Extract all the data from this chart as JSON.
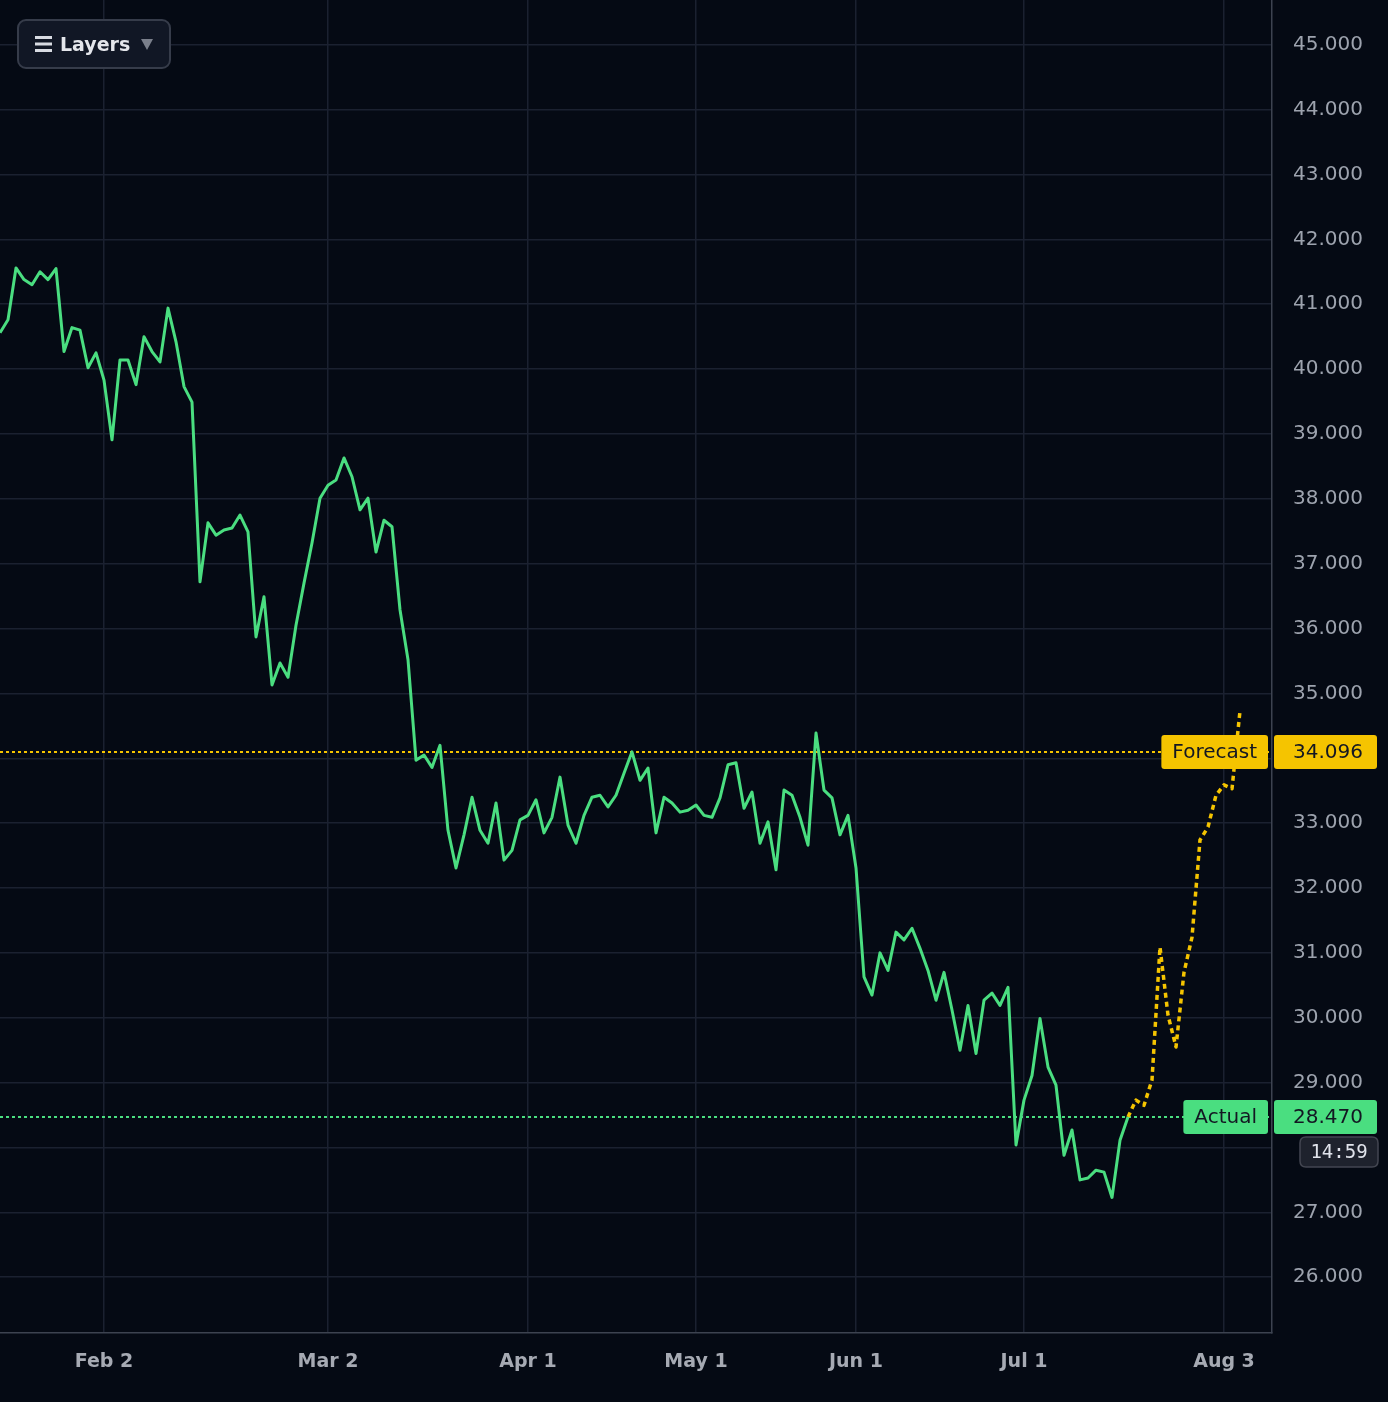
{
  "chart_data": {
    "type": "line",
    "annotations": [
      "Layers",
      "34.096",
      "28.470",
      "14:59"
    ],
    "categories": [
      null,
      null,
      null,
      null,
      null,
      null,
      null,
      null,
      null,
      null,
      null,
      null,
      null,
      "Feb 2",
      null,
      null,
      null,
      null,
      null,
      null,
      null,
      null,
      null,
      null,
      null,
      null,
      null,
      null,
      null,
      null,
      null,
      null,
      null,
      null,
      null,
      null,
      null,
      null,
      null,
      null,
      null,
      "Mar 2",
      null,
      null,
      null,
      null,
      null,
      null,
      null,
      null,
      null,
      null,
      null,
      null,
      null,
      null,
      null,
      null,
      null,
      null,
      null,
      null,
      null,
      null,
      null,
      null,
      "Apr 1",
      null,
      null,
      null,
      null,
      null,
      null,
      null,
      null,
      null,
      null,
      null,
      null,
      null,
      null,
      null,
      null,
      null,
      null,
      null,
      null,
      "May 1",
      null,
      null,
      null,
      null,
      null,
      null,
      null,
      null,
      null,
      null,
      null,
      null,
      null,
      null,
      null,
      null,
      null,
      null,
      null,
      "Jun 1",
      null,
      null,
      null,
      null,
      null,
      null,
      null,
      null,
      null,
      null,
      null,
      null,
      null,
      null,
      null,
      null,
      null,
      null,
      null,
      null,
      "Jul 1",
      null,
      null,
      null,
      null,
      null,
      null,
      null,
      null,
      null,
      null,
      null,
      null,
      null,
      null,
      null,
      null,
      null,
      null,
      null,
      null,
      null,
      null,
      null,
      null,
      "Aug 3",
      null,
      null,
      null,
      null,
      null,
      null
    ],
    "series": [
      {
        "color": "#4ade80",
        "values": [
          40.56,
          40.76,
          41.56,
          41.38,
          41.3,
          41.5,
          41.38,
          41.55,
          40.27,
          40.64,
          40.6,
          40.02,
          40.25,
          39.83,
          38.91,
          40.14,
          40.14,
          39.76,
          40.5,
          40.27,
          40.11,
          40.94,
          40.42,
          39.73,
          39.49,
          36.72,
          37.63,
          37.44,
          37.52,
          37.55,
          37.75,
          37.49,
          35.87,
          36.49,
          35.13,
          35.47,
          35.25,
          36.05,
          36.7,
          37.32,
          38.01,
          38.21,
          38.29,
          38.63,
          38.34,
          37.83,
          38.01,
          37.18,
          37.67,
          37.57,
          36.29,
          35.52,
          33.97,
          34.05,
          33.86,
          34.2,
          32.89,
          32.31,
          32.82,
          33.4,
          32.89,
          32.69,
          33.31,
          32.43,
          32.58,
          33.05,
          33.12,
          33.36,
          32.85,
          33.09,
          33.71,
          32.97,
          32.69,
          33.12,
          33.4,
          33.43,
          33.25,
          33.43,
          33.77,
          34.1,
          33.66,
          33.85,
          32.85,
          33.4,
          33.31,
          33.17,
          33.2,
          33.28,
          33.12,
          33.09,
          33.39,
          33.9,
          33.93,
          33.23,
          33.48,
          32.69,
          33.02,
          32.28,
          33.51,
          33.43,
          33.09,
          32.66,
          34.39,
          33.51,
          33.39,
          32.82,
          33.12,
          32.31,
          30.63,
          30.35,
          31.0,
          30.73,
          31.32,
          31.2,
          31.38,
          31.07,
          30.73,
          30.27,
          30.7,
          30.12,
          29.5,
          30.19,
          29.45,
          30.27,
          30.38,
          30.19,
          30.47,
          28.04,
          28.73,
          29.11,
          29.99,
          29.24,
          28.96,
          27.88,
          28.27,
          27.5,
          27.53,
          27.65,
          27.62,
          27.23,
          28.11,
          28.47,
          null,
          null,
          null,
          null,
          null,
          null,
          null,
          null,
          null,
          null,
          null,
          null,
          null,
          null,
          null,
          null,
          null,
          null
        ]
      },
      {
        "color": "#f5c400",
        "line_style": "dotted",
        "values": [
          null,
          null,
          null,
          null,
          null,
          null,
          null,
          null,
          null,
          null,
          null,
          null,
          null,
          null,
          null,
          null,
          null,
          null,
          null,
          null,
          null,
          null,
          null,
          null,
          null,
          null,
          null,
          null,
          null,
          null,
          null,
          null,
          null,
          null,
          null,
          null,
          null,
          null,
          null,
          null,
          null,
          null,
          null,
          null,
          null,
          null,
          null,
          null,
          null,
          null,
          null,
          null,
          null,
          null,
          null,
          null,
          null,
          null,
          null,
          null,
          null,
          null,
          null,
          null,
          null,
          null,
          null,
          null,
          null,
          null,
          null,
          null,
          null,
          null,
          null,
          null,
          null,
          null,
          null,
          null,
          null,
          null,
          null,
          null,
          null,
          null,
          null,
          null,
          null,
          null,
          null,
          null,
          null,
          null,
          null,
          null,
          null,
          null,
          null,
          null,
          null,
          null,
          null,
          null,
          null,
          null,
          null,
          null,
          null,
          null,
          null,
          null,
          null,
          null,
          null,
          null,
          null,
          null,
          null,
          null,
          null,
          null,
          null,
          null,
          null,
          null,
          null,
          null,
          null,
          null,
          null,
          null,
          null,
          null,
          null,
          null,
          null,
          null,
          null,
          null,
          null,
          28.47,
          28.73,
          28.65,
          29.04,
          31.09,
          30.04,
          29.55,
          30.7,
          31.24,
          32.74,
          32.94,
          33.43,
          33.59,
          33.53,
          34.73,
          null,
          null,
          null,
          null
        ]
      }
    ],
    "ylim": [
      25.14,
      45.69
    ],
    "yticks": [
      {
        "value": 26,
        "label": "26.000"
      },
      {
        "value": 27,
        "label": "27.000"
      },
      {
        "value": 28,
        "label": null
      },
      {
        "value": 29,
        "label": "29.000"
      },
      {
        "value": 30,
        "label": "30.000"
      },
      {
        "value": 31,
        "label": "31.000"
      },
      {
        "value": 32,
        "label": "32.000"
      },
      {
        "value": 33,
        "label": "33.000"
      },
      {
        "value": 34,
        "label": null
      },
      {
        "value": 35,
        "label": "35.000"
      },
      {
        "value": 36,
        "label": "36.000"
      },
      {
        "value": 37,
        "label": "37.000"
      },
      {
        "value": 38,
        "label": "38.000"
      },
      {
        "value": 39,
        "label": "39.000"
      },
      {
        "value": 40,
        "label": "40.000"
      },
      {
        "value": 41,
        "label": "41.000"
      },
      {
        "value": 42,
        "label": "42.000"
      },
      {
        "value": 43,
        "label": "43.000"
      },
      {
        "value": 44,
        "label": "44.000"
      },
      {
        "value": 45,
        "label": "45.000"
      }
    ],
    "grid": true,
    "legend": false,
    "ref_lines": [
      {
        "axis": "y",
        "value": 34.096,
        "label": "Forecast",
        "color": "#f5c400",
        "line_style": "dotted"
      },
      {
        "axis": "y",
        "value": 28.47,
        "label": "Actual",
        "color": "#4ade80",
        "line_style": "dotted"
      }
    ]
  }
}
